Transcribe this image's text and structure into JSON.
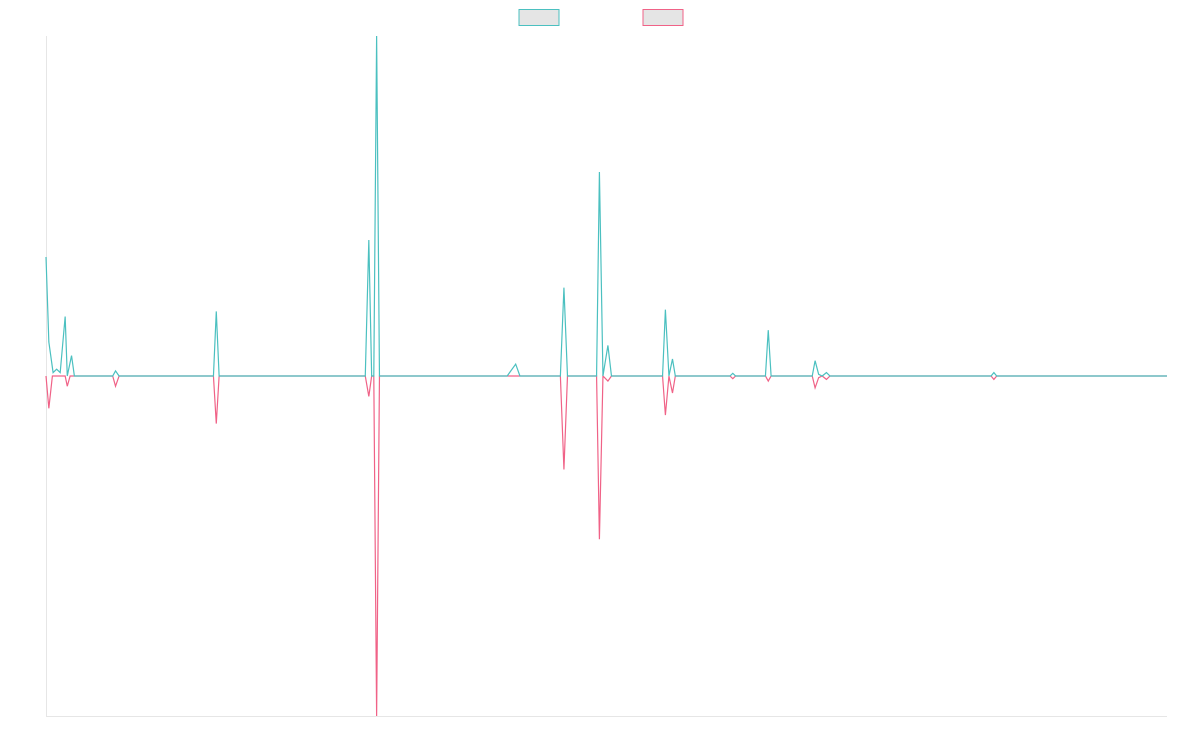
{
  "chart_data": {
    "type": "line",
    "title": "",
    "xlabel": "",
    "ylabel": "",
    "grid": false,
    "legend_position": "top-center",
    "ylim": [
      -100,
      100
    ],
    "xlim": [
      0,
      158
    ],
    "series": [
      {
        "color": "#4bc0c0",
        "fill": "#e5e5e5",
        "points": [
          [
            0,
            35
          ],
          [
            0.4,
            10
          ],
          [
            1,
            1
          ],
          [
            1.5,
            2
          ],
          [
            2,
            1
          ],
          [
            2.7,
            17.5
          ],
          [
            3,
            0
          ],
          [
            3.6,
            6
          ],
          [
            4,
            0
          ],
          [
            9.4,
            0
          ],
          [
            9.8,
            1.5
          ],
          [
            10.3,
            0
          ],
          [
            23.6,
            0
          ],
          [
            24,
            19
          ],
          [
            24.4,
            0
          ],
          [
            45,
            0
          ],
          [
            45.5,
            40
          ],
          [
            45.9,
            0
          ],
          [
            46.2,
            0
          ],
          [
            46.6,
            100
          ],
          [
            47,
            0
          ],
          [
            65,
            0
          ],
          [
            66.2,
            3.5
          ],
          [
            66.8,
            0
          ],
          [
            72.5,
            0
          ],
          [
            73,
            26
          ],
          [
            73.5,
            0
          ],
          [
            77.6,
            0
          ],
          [
            78,
            60
          ],
          [
            78.5,
            0
          ],
          [
            79.2,
            9
          ],
          [
            79.7,
            0
          ],
          [
            86.9,
            0
          ],
          [
            87.3,
            19.5
          ],
          [
            87.8,
            0
          ],
          [
            88.3,
            5
          ],
          [
            88.7,
            0
          ],
          [
            96.4,
            0
          ],
          [
            96.8,
            0.8
          ],
          [
            97.2,
            0
          ],
          [
            101.4,
            0
          ],
          [
            101.8,
            13.5
          ],
          [
            102.2,
            0
          ],
          [
            108,
            0
          ],
          [
            108.4,
            4.5
          ],
          [
            108.9,
            0.5
          ],
          [
            109.4,
            0
          ],
          [
            110,
            1
          ],
          [
            110.5,
            0
          ],
          [
            133.2,
            0
          ],
          [
            133.6,
            1
          ],
          [
            134,
            0
          ],
          [
            158,
            0
          ]
        ]
      },
      {
        "color": "#f06287",
        "fill": "#e5e5e5",
        "points": [
          [
            0,
            0
          ],
          [
            0.4,
            -9.5
          ],
          [
            0.9,
            0
          ],
          [
            2.7,
            0
          ],
          [
            3,
            -3
          ],
          [
            3.4,
            0
          ],
          [
            9.4,
            0
          ],
          [
            9.8,
            -3
          ],
          [
            10.3,
            0
          ],
          [
            23.6,
            0
          ],
          [
            24,
            -14
          ],
          [
            24.4,
            0
          ],
          [
            45,
            0
          ],
          [
            45.5,
            -6
          ],
          [
            45.9,
            0
          ],
          [
            46.2,
            0
          ],
          [
            46.6,
            -100
          ],
          [
            47,
            0
          ],
          [
            72.5,
            0
          ],
          [
            73,
            -27.5
          ],
          [
            73.5,
            0
          ],
          [
            77.6,
            0
          ],
          [
            78,
            -48
          ],
          [
            78.5,
            0
          ],
          [
            79.2,
            -1.5
          ],
          [
            79.7,
            0
          ],
          [
            86.9,
            0
          ],
          [
            87.3,
            -11.5
          ],
          [
            87.8,
            0
          ],
          [
            88.3,
            -5
          ],
          [
            88.7,
            0
          ],
          [
            96.4,
            0
          ],
          [
            96.8,
            -0.8
          ],
          [
            97.2,
            0
          ],
          [
            101.4,
            0
          ],
          [
            101.8,
            -1.5
          ],
          [
            102.2,
            0
          ],
          [
            108,
            0
          ],
          [
            108.4,
            -3.5
          ],
          [
            108.9,
            -0.5
          ],
          [
            109.4,
            0
          ],
          [
            110,
            -1
          ],
          [
            110.5,
            0
          ],
          [
            133.2,
            0
          ],
          [
            133.6,
            -1
          ],
          [
            134,
            0
          ],
          [
            158,
            0
          ]
        ]
      }
    ]
  }
}
